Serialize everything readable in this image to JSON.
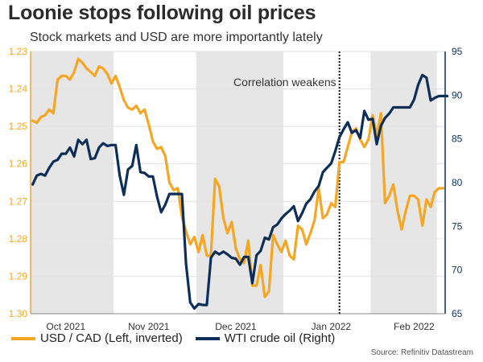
{
  "title": "Loonie stops following oil prices",
  "subtitle": "Stock markets and USD are more importantly lately",
  "source": "Source: Refinitiv Datastream",
  "colors": {
    "usdcad": "#f5a623",
    "wti": "#0d2f57",
    "shade": "#e6e6e6",
    "grid": "#e2e2e2"
  },
  "chart_data": {
    "type": "line",
    "title": "Loonie stops following oil prices",
    "subtitle": "Stock markets and USD are more importantly lately",
    "annotation": {
      "text": "Correlation weakens",
      "at_index": 74
    },
    "x_tick_labels": [
      {
        "label": "Oct 2021",
        "index": 8
      },
      {
        "label": "Nov 2021",
        "index": 28
      },
      {
        "label": "Dec 2021",
        "index": 49
      },
      {
        "label": "Jan 2022",
        "index": 72
      },
      {
        "label": "Feb 2022",
        "index": 92
      }
    ],
    "shaded_periods": [
      [
        0,
        19
      ],
      [
        40,
        60
      ],
      [
        82,
        97
      ]
    ],
    "grid": true,
    "left_axis": {
      "label": "USD / CAD (Left, inverted)",
      "inverted": true,
      "range": [
        1.23,
        1.3
      ],
      "ticks": [
        "1.23",
        "1.24",
        "1.25",
        "1.26",
        "1.27",
        "1.28",
        "1.29",
        "1.30"
      ]
    },
    "right_axis": {
      "label": "WTI crude oil (Right)",
      "range": [
        65,
        95
      ],
      "ticks": [
        "65",
        "70",
        "75",
        "80",
        "85",
        "90",
        "95"
      ]
    },
    "series": [
      {
        "name": "USD / CAD (Left, inverted)",
        "axis": "left",
        "values": [
          1.2485,
          1.249,
          1.2475,
          1.247,
          1.2455,
          1.2465,
          1.2375,
          1.2365,
          1.2365,
          1.2375,
          1.2355,
          1.232,
          1.233,
          1.2345,
          1.2355,
          1.2365,
          1.234,
          1.2345,
          1.236,
          1.2385,
          1.2365,
          1.2395,
          1.243,
          1.245,
          1.2455,
          1.2445,
          1.2465,
          1.2455,
          1.2495,
          1.254,
          1.256,
          1.2555,
          1.258,
          1.265,
          1.267,
          1.2665,
          1.274,
          1.278,
          1.2815,
          1.2795,
          1.2835,
          1.279,
          1.2845,
          1.2845,
          1.264,
          1.266,
          1.2745,
          1.2785,
          1.2755,
          1.2825,
          1.2855,
          1.2865,
          1.2805,
          1.2925,
          1.2925,
          1.287,
          1.2955,
          1.294,
          1.279,
          1.2815,
          1.2835,
          1.2805,
          1.2845,
          1.2855,
          1.2765,
          1.2775,
          1.2815,
          1.2785,
          1.275,
          1.2665,
          1.2745,
          1.2735,
          1.2705,
          1.2715,
          1.2595,
          1.2595,
          1.2555,
          1.2515,
          1.2505,
          1.2535,
          1.2555,
          1.2535,
          1.247,
          1.2525,
          1.2465,
          1.2705,
          1.2685,
          1.2655,
          1.2725,
          1.2775,
          1.2725,
          1.2685,
          1.2685,
          1.2695,
          1.2765,
          1.2695,
          1.2715,
          1.2675,
          1.2665,
          1.2665
        ],
        "color": "#f5a623"
      },
      {
        "name": "WTI crude oil (Right)",
        "axis": "right",
        "values": [
          79.8,
          80.8,
          81.0,
          80.8,
          81.7,
          82.4,
          82.6,
          83.3,
          83.3,
          84.0,
          83.0,
          84.9,
          84.4,
          84.9,
          82.7,
          82.8,
          84.0,
          84.5,
          84.2,
          84.3,
          84.3,
          80.8,
          78.6,
          81.5,
          81.9,
          84.3,
          81.2,
          81.1,
          80.7,
          80.7,
          78.4,
          76.6,
          77.5,
          78.7,
          78.7,
          78.7,
          78.7,
          70.7,
          66.3,
          65.6,
          66.1,
          66.0,
          66.0,
          71.4,
          72.1,
          71.8,
          72.1,
          71.8,
          71.4,
          71.3,
          70.6,
          71.5,
          71.5,
          68.5,
          71.7,
          72.2,
          73.7,
          73.5,
          74.9,
          75.2,
          75.9,
          76.4,
          76.8,
          77.3,
          75.6,
          76.5,
          77.6,
          78.1,
          79.0,
          79.6,
          81.2,
          81.7,
          82.2,
          83.6,
          85.2,
          86.1,
          86.9,
          85.7,
          86.0,
          85.1,
          88.2,
          87.2,
          87.3,
          84.4,
          86.5,
          87.4,
          87.9,
          88.6,
          88.6,
          88.6,
          88.6,
          88.6,
          89.5,
          91.2,
          92.3,
          92.0,
          89.4,
          89.7,
          89.9,
          89.9,
          89.9
        ],
        "color": "#0d2f57"
      }
    ]
  }
}
